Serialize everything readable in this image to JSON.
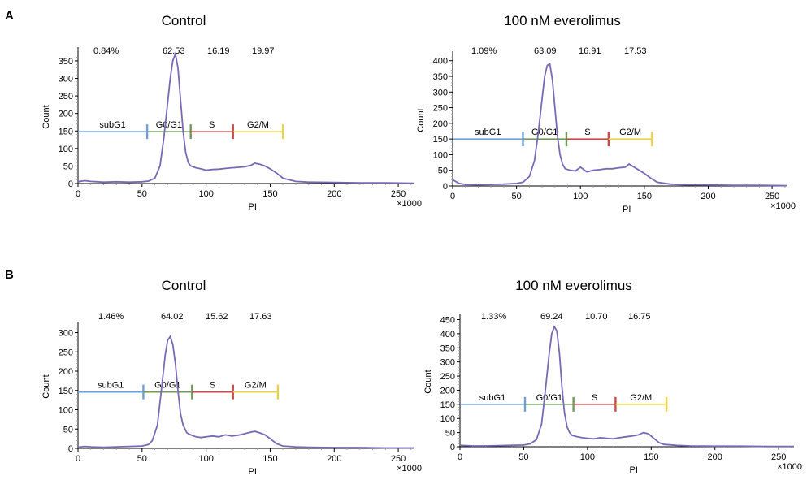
{
  "panel_letters": [
    "A",
    "B"
  ],
  "colors": {
    "curve": "#7b68b5",
    "subG1": "#6f9fd8",
    "G0G1": "#6f9a5a",
    "S": "#c94a4a",
    "G2M": "#e9d24a",
    "highlight_pct": "#e0322f"
  },
  "chart_data": [
    {
      "type": "line",
      "panel": "A",
      "title": "Control",
      "xlabel": "PI",
      "ylabel": "Count",
      "x_multiplier": "×1000",
      "xlim": [
        0,
        262
      ],
      "ylim": [
        0,
        380
      ],
      "xticks": [
        0,
        50,
        100,
        150,
        200,
        250
      ],
      "yticks": [
        0,
        50,
        100,
        150,
        200,
        250,
        300,
        350
      ],
      "percentages": [
        {
          "label": "0.84%",
          "highlight": false
        },
        {
          "label": "62.53",
          "highlight": true
        },
        {
          "label": "16.19",
          "highlight": false
        },
        {
          "label": "19.97",
          "highlight": false
        }
      ],
      "gates": [
        {
          "name": "subG1",
          "start": 0,
          "end": 54,
          "color": "#6f9fd8"
        },
        {
          "name": "G0/G1",
          "start": 54,
          "end": 88,
          "color": "#6f9a5a"
        },
        {
          "name": "S",
          "start": 88,
          "end": 121,
          "color": "#c94a4a"
        },
        {
          "name": "G2/M",
          "start": 121,
          "end": 160,
          "color": "#e9d24a"
        }
      ],
      "gate_y": 148,
      "x": [
        0,
        5,
        10,
        20,
        30,
        40,
        50,
        55,
        60,
        64,
        67,
        70,
        72,
        74,
        76,
        78,
        80,
        82,
        84,
        86,
        88,
        92,
        96,
        100,
        105,
        110,
        115,
        120,
        125,
        130,
        135,
        138,
        142,
        146,
        150,
        155,
        160,
        170,
        180,
        200,
        220,
        240,
        262
      ],
      "y": [
        5,
        8,
        6,
        4,
        5,
        4,
        5,
        7,
        15,
        50,
        130,
        230,
        300,
        350,
        370,
        330,
        240,
        150,
        90,
        60,
        50,
        45,
        42,
        38,
        40,
        41,
        43,
        45,
        46,
        48,
        52,
        58,
        55,
        50,
        42,
        30,
        15,
        6,
        4,
        3,
        2,
        2,
        1
      ]
    },
    {
      "type": "line",
      "panel": "A",
      "title": "100 nM everolimus",
      "xlabel": "PI",
      "ylabel": "Count",
      "x_multiplier": "×1000",
      "xlim": [
        0,
        262
      ],
      "ylim": [
        0,
        420
      ],
      "xticks": [
        0,
        50,
        100,
        150,
        200,
        250
      ],
      "yticks": [
        0,
        50,
        100,
        150,
        200,
        250,
        300,
        350,
        400
      ],
      "percentages": [
        {
          "label": "1.09%",
          "highlight": false
        },
        {
          "label": "63.09",
          "highlight": true
        },
        {
          "label": "16.91",
          "highlight": false
        },
        {
          "label": "17.53",
          "highlight": false
        }
      ],
      "gates": [
        {
          "name": "subG1",
          "start": 0,
          "end": 55,
          "color": "#6f9fd8"
        },
        {
          "name": "G0/G1",
          "start": 55,
          "end": 89,
          "color": "#6f9a5a"
        },
        {
          "name": "S",
          "start": 89,
          "end": 122,
          "color": "#c94a4a"
        },
        {
          "name": "G2/M",
          "start": 122,
          "end": 156,
          "color": "#e9d24a"
        }
      ],
      "gate_y": 150,
      "x": [
        0,
        5,
        10,
        20,
        30,
        40,
        50,
        55,
        60,
        64,
        67,
        70,
        72,
        74,
        76,
        78,
        80,
        82,
        84,
        86,
        88,
        92,
        96,
        100,
        105,
        110,
        115,
        120,
        125,
        130,
        135,
        138,
        142,
        146,
        150,
        155,
        160,
        170,
        180,
        200,
        220,
        240,
        262
      ],
      "y": [
        20,
        8,
        5,
        4,
        5,
        6,
        8,
        12,
        30,
        80,
        170,
        280,
        350,
        385,
        390,
        340,
        250,
        160,
        100,
        70,
        55,
        50,
        48,
        60,
        45,
        50,
        52,
        55,
        55,
        58,
        60,
        70,
        60,
        50,
        40,
        25,
        12,
        6,
        4,
        3,
        2,
        2,
        1
      ]
    },
    {
      "type": "line",
      "panel": "B",
      "title": "Control",
      "xlabel": "PI",
      "ylabel": "Count",
      "x_multiplier": "×1000",
      "xlim": [
        0,
        262
      ],
      "ylim": [
        0,
        320
      ],
      "xticks": [
        0,
        50,
        100,
        150,
        200,
        250
      ],
      "yticks": [
        0,
        50,
        100,
        150,
        200,
        250,
        300
      ],
      "percentages": [
        {
          "label": "1.46%",
          "highlight": false
        },
        {
          "label": "64.02",
          "highlight": true
        },
        {
          "label": "15.62",
          "highlight": false
        },
        {
          "label": "17.63",
          "highlight": false
        }
      ],
      "gates": [
        {
          "name": "subG1",
          "start": 0,
          "end": 51,
          "color": "#6f9fd8"
        },
        {
          "name": "G0/G1",
          "start": 51,
          "end": 89,
          "color": "#6f9a5a"
        },
        {
          "name": "S",
          "start": 89,
          "end": 121,
          "color": "#c94a4a"
        },
        {
          "name": "G2/M",
          "start": 121,
          "end": 156,
          "color": "#e9d24a"
        }
      ],
      "gate_y": 146,
      "x": [
        0,
        5,
        10,
        20,
        30,
        40,
        50,
        55,
        58,
        62,
        65,
        68,
        70,
        72,
        74,
        76,
        78,
        80,
        82,
        85,
        88,
        92,
        96,
        100,
        105,
        110,
        115,
        120,
        125,
        130,
        135,
        138,
        142,
        146,
        150,
        155,
        160,
        170,
        180,
        200,
        220,
        240,
        262
      ],
      "y": [
        3,
        5,
        4,
        3,
        4,
        5,
        6,
        10,
        20,
        60,
        150,
        240,
        280,
        290,
        270,
        220,
        150,
        90,
        60,
        40,
        35,
        30,
        28,
        30,
        32,
        30,
        35,
        32,
        34,
        38,
        42,
        44,
        40,
        35,
        25,
        12,
        6,
        4,
        3,
        2,
        2,
        1,
        1
      ]
    },
    {
      "type": "line",
      "panel": "B",
      "title": "100 nM everolimus",
      "xlabel": "PI",
      "ylabel": "Count",
      "x_multiplier": "×1000",
      "xlim": [
        0,
        262
      ],
      "ylim": [
        0,
        460
      ],
      "xticks": [
        0,
        50,
        100,
        150,
        200,
        250
      ],
      "yticks": [
        0,
        50,
        100,
        150,
        200,
        250,
        300,
        350,
        400,
        450
      ],
      "percentages": [
        {
          "label": "1.33%",
          "highlight": false
        },
        {
          "label": "69.24",
          "highlight": true
        },
        {
          "label": "10.70",
          "highlight": false
        },
        {
          "label": "16.75",
          "highlight": false
        }
      ],
      "gates": [
        {
          "name": "subG1",
          "start": 0,
          "end": 51,
          "color": "#6f9fd8"
        },
        {
          "name": "G0/G1",
          "start": 51,
          "end": 89,
          "color": "#6f9a5a"
        },
        {
          "name": "S",
          "start": 89,
          "end": 122,
          "color": "#c94a4a"
        },
        {
          "name": "G2/M",
          "start": 122,
          "end": 162,
          "color": "#e9d24a"
        }
      ],
      "gate_y": 150,
      "x": [
        0,
        5,
        10,
        20,
        30,
        40,
        50,
        55,
        60,
        64,
        67,
        70,
        72,
        74,
        76,
        78,
        80,
        82,
        84,
        86,
        88,
        92,
        96,
        100,
        105,
        110,
        115,
        120,
        125,
        130,
        135,
        140,
        144,
        148,
        152,
        156,
        160,
        170,
        180,
        200,
        220,
        240,
        262
      ],
      "y": [
        5,
        4,
        3,
        3,
        4,
        5,
        6,
        10,
        25,
        80,
        200,
        330,
        400,
        425,
        410,
        330,
        210,
        120,
        70,
        50,
        40,
        35,
        32,
        30,
        28,
        32,
        30,
        28,
        32,
        35,
        38,
        42,
        50,
        45,
        30,
        15,
        8,
        5,
        3,
        2,
        2,
        1,
        1
      ]
    }
  ]
}
